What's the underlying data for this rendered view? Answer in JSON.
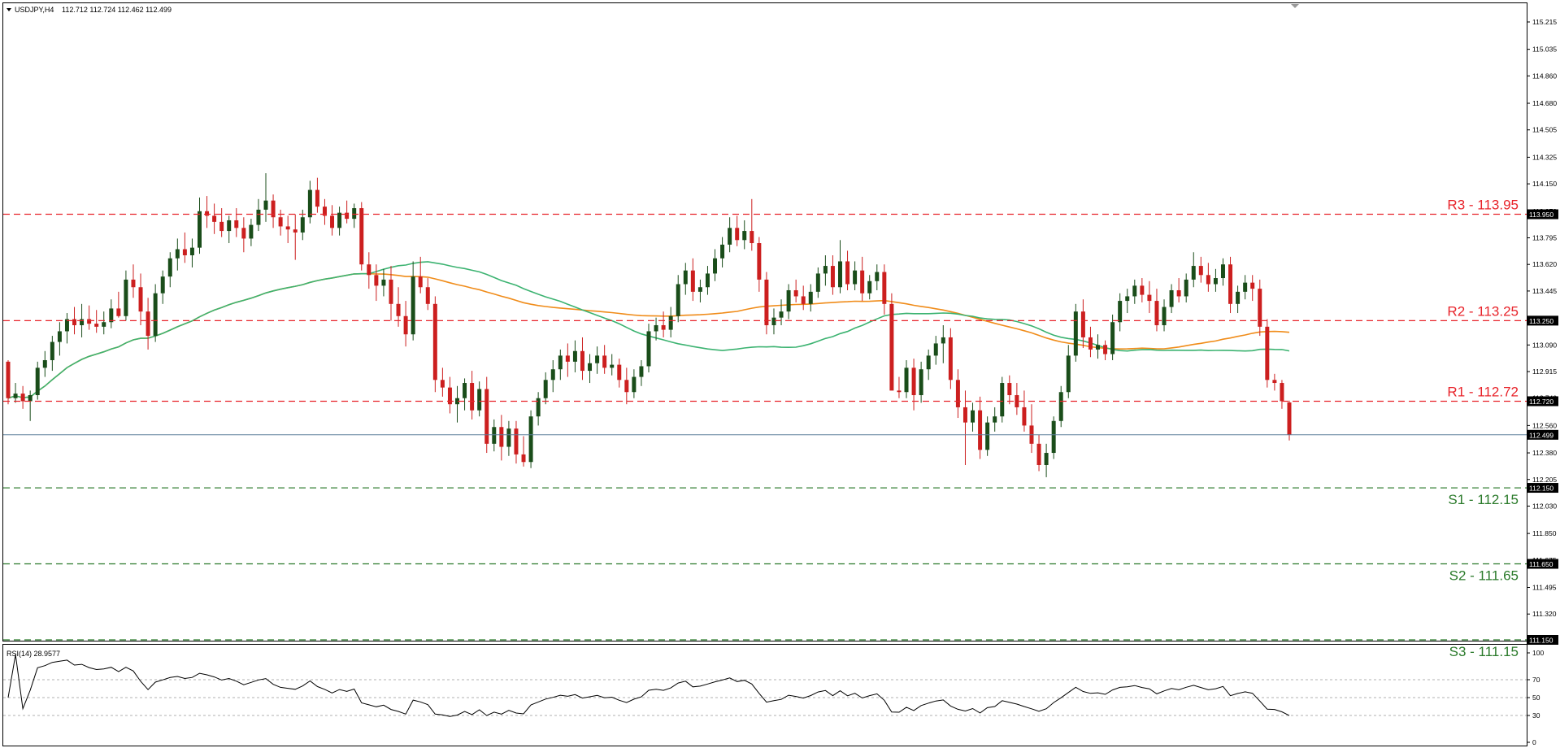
{
  "header": {
    "symbol_label": "USDJPY,H4",
    "ohlc_label": "112.712 112.724 112.462 112.499"
  },
  "rsi_header": {
    "label": "RSI(14) 28.9577"
  },
  "colors": {
    "bull_candle": "#1a4d1a",
    "bear_candle": "#cc1f1f",
    "ma_fast": "#3cb371",
    "ma_slow": "#f08c1a",
    "resistance": "#e8242b",
    "support": "#2a7a2a",
    "current_price_line": "#5a7d99",
    "price_tag_bg": "#000000"
  },
  "chart_data": [
    {
      "type": "candlestick",
      "title": "USDJPY,H4",
      "ylim": [
        111.15,
        115.3
      ],
      "y_ticks": [
        "115.215",
        "115.035",
        "114.860",
        "114.680",
        "114.505",
        "114.325",
        "114.150",
        "113.970",
        "113.795",
        "113.620",
        "113.445",
        "113.265",
        "113.090",
        "112.915",
        "112.740",
        "112.560",
        "112.380",
        "112.205",
        "112.030",
        "111.850",
        "111.675",
        "111.495",
        "111.320",
        "111.150"
      ],
      "candles": [
        [
          112.98,
          112.99,
          112.7,
          112.74
        ],
        [
          112.74,
          112.84,
          112.71,
          112.77
        ],
        [
          112.77,
          112.82,
          112.67,
          112.72
        ],
        [
          112.72,
          112.79,
          112.59,
          112.76
        ],
        [
          112.76,
          112.98,
          112.73,
          112.94
        ],
        [
          112.94,
          113.05,
          112.88,
          112.99
        ],
        [
          112.99,
          113.15,
          112.92,
          113.11
        ],
        [
          113.11,
          113.24,
          113.02,
          113.18
        ],
        [
          113.18,
          113.3,
          113.1,
          113.26
        ],
        [
          113.26,
          113.34,
          113.16,
          113.22
        ],
        [
          113.22,
          113.36,
          113.14,
          113.26
        ],
        [
          113.26,
          113.35,
          113.19,
          113.23
        ],
        [
          113.23,
          113.32,
          113.17,
          113.21
        ],
        [
          113.21,
          113.31,
          113.16,
          113.24
        ],
        [
          113.24,
          113.39,
          113.2,
          113.33
        ],
        [
          113.33,
          113.44,
          113.27,
          113.28
        ],
        [
          113.28,
          113.58,
          113.25,
          113.52
        ],
        [
          113.52,
          113.62,
          113.4,
          113.47
        ],
        [
          113.47,
          113.56,
          113.22,
          113.31
        ],
        [
          113.31,
          113.4,
          113.06,
          113.15
        ],
        [
          113.15,
          113.49,
          113.11,
          113.43
        ],
        [
          113.43,
          113.58,
          113.36,
          113.54
        ],
        [
          113.54,
          113.7,
          113.47,
          113.66
        ],
        [
          113.66,
          113.79,
          113.58,
          113.72
        ],
        [
          113.72,
          113.83,
          113.63,
          113.68
        ],
        [
          113.68,
          113.79,
          113.6,
          113.73
        ],
        [
          113.73,
          114.06,
          113.69,
          113.97
        ],
        [
          113.97,
          114.07,
          113.86,
          113.94
        ],
        [
          113.94,
          114.02,
          113.82,
          113.9
        ],
        [
          113.9,
          113.99,
          113.8,
          113.84
        ],
        [
          113.84,
          113.94,
          113.76,
          113.91
        ],
        [
          113.91,
          113.99,
          113.8,
          113.86
        ],
        [
          113.86,
          113.93,
          113.7,
          113.79
        ],
        [
          113.79,
          113.92,
          113.74,
          113.88
        ],
        [
          113.88,
          114.05,
          113.84,
          113.98
        ],
        [
          113.98,
          114.22,
          113.9,
          114.04
        ],
        [
          114.04,
          114.08,
          113.86,
          113.93
        ],
        [
          113.93,
          113.98,
          113.81,
          113.87
        ],
        [
          113.87,
          113.94,
          113.76,
          113.85
        ],
        [
          113.85,
          113.95,
          113.65,
          113.83
        ],
        [
          113.83,
          113.98,
          113.78,
          113.93
        ],
        [
          113.93,
          114.17,
          113.89,
          114.11
        ],
        [
          114.11,
          114.19,
          113.96,
          114.0
        ],
        [
          114.0,
          114.05,
          113.88,
          113.94
        ],
        [
          113.94,
          114.01,
          113.81,
          113.86
        ],
        [
          113.86,
          114.0,
          113.81,
          113.96
        ],
        [
          113.96,
          114.04,
          113.89,
          113.92
        ],
        [
          113.92,
          114.02,
          113.86,
          113.99
        ],
        [
          113.99,
          114.03,
          113.58,
          113.62
        ],
        [
          113.62,
          113.7,
          113.46,
          113.55
        ],
        [
          113.55,
          113.62,
          113.38,
          113.48
        ],
        [
          113.48,
          113.59,
          113.41,
          113.52
        ],
        [
          113.52,
          113.61,
          113.25,
          113.36
        ],
        [
          113.36,
          113.47,
          113.21,
          113.28
        ],
        [
          113.28,
          113.38,
          113.08,
          113.16
        ],
        [
          113.16,
          113.64,
          113.12,
          113.54
        ],
        [
          113.54,
          113.67,
          113.43,
          113.47
        ],
        [
          113.47,
          113.53,
          113.32,
          113.36
        ],
        [
          113.36,
          113.41,
          112.78,
          112.86
        ],
        [
          112.86,
          112.94,
          112.75,
          112.81
        ],
        [
          112.81,
          112.88,
          112.64,
          112.7
        ],
        [
          112.7,
          112.82,
          112.58,
          112.74
        ],
        [
          112.74,
          112.87,
          112.66,
          112.84
        ],
        [
          112.84,
          112.92,
          112.6,
          112.66
        ],
        [
          112.66,
          112.85,
          112.62,
          112.8
        ],
        [
          112.8,
          112.88,
          112.38,
          112.44
        ],
        [
          112.44,
          112.6,
          112.39,
          112.55
        ],
        [
          112.55,
          112.63,
          112.33,
          112.42
        ],
        [
          112.42,
          112.59,
          112.36,
          112.54
        ],
        [
          112.54,
          112.59,
          112.31,
          112.37
        ],
        [
          112.37,
          112.49,
          112.29,
          112.32
        ],
        [
          112.32,
          112.66,
          112.28,
          112.62
        ],
        [
          112.62,
          112.78,
          112.56,
          112.74
        ],
        [
          112.74,
          112.91,
          112.7,
          112.86
        ],
        [
          112.86,
          112.99,
          112.78,
          112.93
        ],
        [
          112.93,
          113.06,
          112.86,
          113.02
        ],
        [
          113.02,
          113.1,
          112.88,
          112.98
        ],
        [
          112.98,
          113.12,
          112.91,
          113.05
        ],
        [
          113.05,
          113.14,
          112.86,
          112.92
        ],
        [
          112.92,
          113.03,
          112.84,
          112.97
        ],
        [
          112.97,
          113.08,
          112.9,
          113.02
        ],
        [
          113.02,
          113.09,
          112.9,
          112.94
        ],
        [
          112.94,
          113.03,
          112.89,
          112.96
        ],
        [
          112.96,
          113.0,
          112.81,
          112.86
        ],
        [
          112.86,
          112.94,
          112.7,
          112.78
        ],
        [
          112.78,
          112.93,
          112.74,
          112.88
        ],
        [
          112.88,
          112.99,
          112.82,
          112.95
        ],
        [
          112.95,
          113.23,
          112.91,
          113.18
        ],
        [
          113.18,
          113.27,
          113.12,
          113.22
        ],
        [
          113.22,
          113.31,
          113.14,
          113.19
        ],
        [
          113.19,
          113.34,
          113.14,
          113.28
        ],
        [
          113.28,
          113.55,
          113.24,
          113.49
        ],
        [
          113.49,
          113.63,
          113.42,
          113.58
        ],
        [
          113.58,
          113.66,
          113.38,
          113.44
        ],
        [
          113.44,
          113.52,
          113.37,
          113.47
        ],
        [
          113.47,
          113.61,
          113.42,
          113.56
        ],
        [
          113.56,
          113.72,
          113.51,
          113.66
        ],
        [
          113.66,
          113.8,
          113.6,
          113.75
        ],
        [
          113.75,
          113.93,
          113.7,
          113.86
        ],
        [
          113.86,
          113.94,
          113.74,
          113.78
        ],
        [
          113.78,
          113.91,
          113.72,
          113.84
        ],
        [
          113.84,
          114.05,
          113.71,
          113.76
        ],
        [
          113.76,
          113.8,
          113.44,
          113.52
        ],
        [
          113.52,
          113.57,
          113.16,
          113.22
        ],
        [
          113.22,
          113.33,
          113.16,
          113.27
        ],
        [
          113.27,
          113.39,
          113.22,
          113.31
        ],
        [
          113.31,
          113.49,
          113.26,
          113.45
        ],
        [
          113.45,
          113.52,
          113.37,
          113.41
        ],
        [
          113.41,
          113.48,
          113.32,
          113.36
        ],
        [
          113.36,
          113.49,
          113.31,
          113.44
        ],
        [
          113.44,
          113.6,
          113.4,
          113.56
        ],
        [
          113.56,
          113.68,
          113.48,
          113.61
        ],
        [
          113.61,
          113.68,
          113.42,
          113.47
        ],
        [
          113.47,
          113.78,
          113.43,
          113.64
        ],
        [
          113.64,
          113.71,
          113.45,
          113.49
        ],
        [
          113.49,
          113.64,
          113.45,
          113.58
        ],
        [
          113.58,
          113.67,
          113.38,
          113.43
        ],
        [
          113.43,
          113.55,
          113.39,
          113.51
        ],
        [
          113.51,
          113.62,
          113.45,
          113.57
        ],
        [
          113.57,
          113.62,
          113.29,
          113.36
        ],
        [
          113.36,
          113.43,
          112.82,
          112.79
        ],
        [
          112.79,
          112.88,
          112.74,
          112.78
        ],
        [
          112.78,
          112.99,
          112.74,
          112.94
        ],
        [
          112.94,
          113.0,
          112.66,
          112.76
        ],
        [
          112.76,
          112.98,
          112.71,
          112.93
        ],
        [
          112.93,
          113.06,
          112.86,
          113.02
        ],
        [
          113.02,
          113.15,
          112.96,
          113.1
        ],
        [
          113.1,
          113.22,
          112.97,
          113.14
        ],
        [
          113.14,
          113.2,
          112.8,
          112.86
        ],
        [
          112.86,
          112.93,
          112.61,
          112.68
        ],
        [
          112.68,
          112.79,
          112.3,
          112.58
        ],
        [
          112.58,
          112.71,
          112.52,
          112.66
        ],
        [
          112.66,
          112.75,
          112.34,
          112.4
        ],
        [
          112.4,
          112.62,
          112.36,
          112.58
        ],
        [
          112.58,
          112.68,
          112.52,
          112.62
        ],
        [
          112.62,
          112.88,
          112.58,
          112.84
        ],
        [
          112.84,
          112.89,
          112.7,
          112.76
        ],
        [
          112.76,
          112.84,
          112.63,
          112.68
        ],
        [
          112.68,
          112.79,
          112.52,
          112.56
        ],
        [
          112.56,
          112.7,
          112.38,
          112.44
        ],
        [
          112.44,
          112.5,
          112.26,
          112.3
        ],
        [
          112.3,
          112.44,
          112.22,
          112.38
        ],
        [
          112.38,
          112.62,
          112.34,
          112.59
        ],
        [
          112.59,
          112.82,
          112.55,
          112.78
        ],
        [
          112.78,
          113.09,
          112.74,
          113.02
        ],
        [
          113.02,
          113.36,
          112.98,
          113.31
        ],
        [
          113.31,
          113.39,
          113.07,
          113.14
        ],
        [
          113.14,
          113.21,
          113.01,
          113.06
        ],
        [
          113.06,
          113.16,
          113.0,
          113.09
        ],
        [
          113.09,
          113.12,
          112.99,
          113.03
        ],
        [
          113.03,
          113.29,
          112.99,
          113.24
        ],
        [
          113.24,
          113.43,
          113.18,
          113.38
        ],
        [
          113.38,
          113.46,
          113.3,
          113.41
        ],
        [
          113.41,
          113.52,
          113.36,
          113.48
        ],
        [
          113.48,
          113.53,
          113.37,
          113.42
        ],
        [
          113.42,
          113.51,
          113.3,
          113.38
        ],
        [
          113.38,
          113.46,
          113.18,
          113.22
        ],
        [
          113.22,
          113.39,
          113.18,
          113.34
        ],
        [
          113.34,
          113.49,
          113.3,
          113.45
        ],
        [
          113.45,
          113.53,
          113.37,
          113.41
        ],
        [
          113.41,
          113.56,
          113.37,
          113.52
        ],
        [
          113.52,
          113.7,
          113.47,
          113.61
        ],
        [
          113.61,
          113.67,
          113.5,
          113.55
        ],
        [
          113.55,
          113.63,
          113.44,
          113.49
        ],
        [
          113.49,
          113.59,
          113.44,
          113.53
        ],
        [
          113.53,
          113.66,
          113.48,
          113.62
        ],
        [
          113.62,
          113.67,
          113.3,
          113.36
        ],
        [
          113.36,
          113.48,
          113.3,
          113.44
        ],
        [
          113.44,
          113.55,
          113.39,
          113.5
        ],
        [
          113.5,
          113.55,
          113.38,
          113.46
        ],
        [
          113.46,
          113.52,
          113.15,
          113.21
        ],
        [
          113.21,
          113.26,
          112.81,
          112.86
        ],
        [
          112.86,
          112.9,
          112.79,
          112.84
        ],
        [
          112.84,
          112.86,
          112.67,
          112.72
        ],
        [
          112.712,
          112.724,
          112.462,
          112.499
        ]
      ],
      "levels": [
        {
          "label": "R3 - 113.95",
          "value": 113.95,
          "kind": "resistance",
          "tag": "113.950"
        },
        {
          "label": "R2 - 113.25",
          "value": 113.25,
          "kind": "resistance",
          "tag": "113.250"
        },
        {
          "label": "R1 - 112.72",
          "value": 112.72,
          "kind": "resistance",
          "tag": "112.720"
        },
        {
          "label": "S1 - 112.15",
          "value": 112.15,
          "kind": "support",
          "tag": "112.150"
        },
        {
          "label": "S2 - 111.65",
          "value": 111.65,
          "kind": "support",
          "tag": "111.650"
        },
        {
          "label": "S3 - 111.15",
          "value": 111.15,
          "kind": "support",
          "tag": "111.150"
        }
      ],
      "current_price": {
        "value": 112.499,
        "tag": "112.499"
      }
    },
    {
      "type": "line",
      "title": "RSI(14) 28.9577",
      "ylim": [
        0,
        100
      ],
      "y_ticks": [
        "100",
        "70",
        "50",
        "30",
        "0"
      ],
      "levels": [
        70,
        50,
        30
      ]
    }
  ]
}
